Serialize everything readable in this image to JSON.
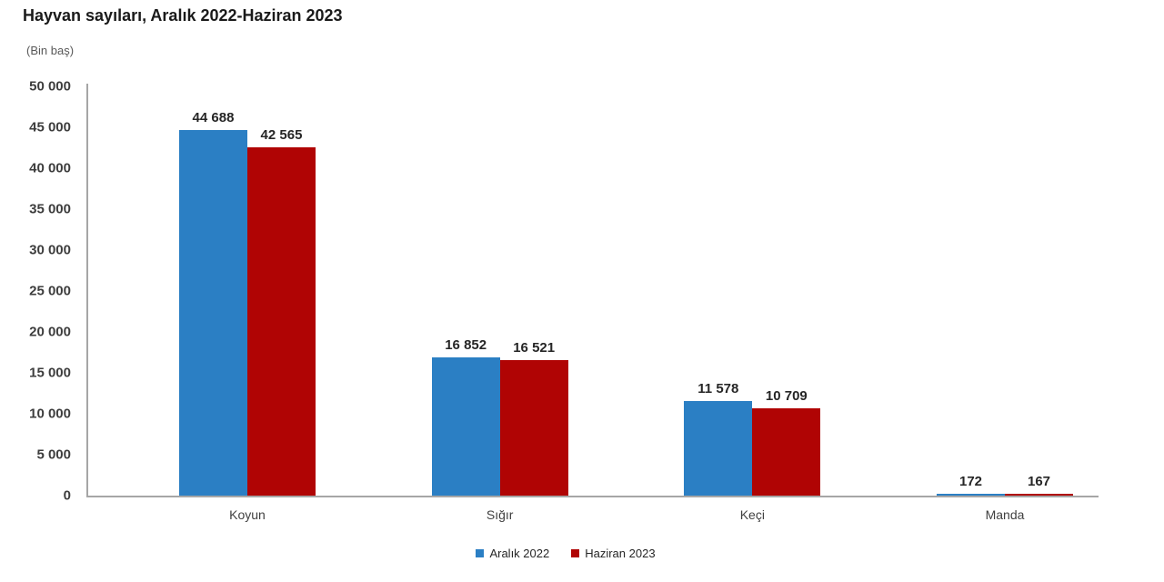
{
  "chart_data": {
    "type": "bar",
    "title": "Hayvan sayıları, Aralık 2022-Haziran 2023",
    "unit_note": "(Bin baş)",
    "categories": [
      "Koyun",
      "Sığır",
      "Keçi",
      "Manda"
    ],
    "series": [
      {
        "name": "Aralık 2022",
        "color": "#2b7fc4",
        "values": [
          44688,
          16852,
          11578,
          172
        ],
        "labels": [
          "44 688",
          "16 852",
          "11 578",
          "172"
        ]
      },
      {
        "name": "Haziran 2023",
        "color": "#b00404",
        "values": [
          42565,
          16521,
          10709,
          167
        ],
        "labels": [
          "42 565",
          "16 521",
          "10 709",
          "167"
        ]
      }
    ],
    "y_axis": {
      "min": 0,
      "max": 50000,
      "step": 5000,
      "tick_values": [
        0,
        5000,
        10000,
        15000,
        20000,
        25000,
        30000,
        35000,
        40000,
        45000,
        50000
      ],
      "tick_labels": [
        "0",
        "5 000",
        "10 000",
        "15 000",
        "20 000",
        "25 000",
        "30 000",
        "35 000",
        "40 000",
        "45 000",
        "50 000"
      ]
    },
    "grid": false,
    "legend_position": "bottom",
    "axis_color": "#a6a6a6"
  }
}
